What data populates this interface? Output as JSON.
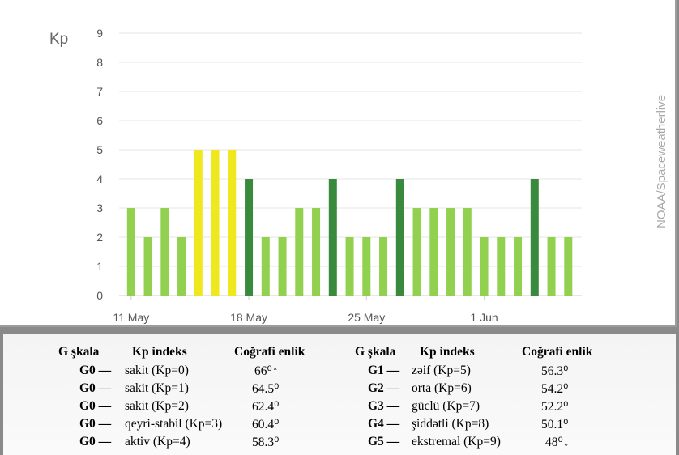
{
  "chart_data": {
    "type": "bar",
    "ylabel": "Kp",
    "ylim": [
      0,
      9
    ],
    "yticks": [
      0,
      1,
      2,
      3,
      4,
      5,
      6,
      7,
      8,
      9
    ],
    "x_tick_labels": [
      "11 May",
      "18 May",
      "25 May",
      "1 Jun"
    ],
    "categories": [
      "11 May",
      "12 May",
      "13 May",
      "14 May",
      "15 May",
      "16 May",
      "17 May",
      "18 May",
      "19 May",
      "20 May",
      "21 May",
      "22 May",
      "23 May",
      "24 May",
      "25 May",
      "26 May",
      "27 May",
      "28 May",
      "29 May",
      "30 May",
      "31 May",
      "1 Jun",
      "2 Jun",
      "3 Jun",
      "4 Jun",
      "5 Jun",
      "6 Jun",
      "7 Jun"
    ],
    "values": [
      3,
      2,
      3,
      2,
      5,
      5,
      5,
      4,
      2,
      2,
      3,
      3,
      4,
      2,
      2,
      2,
      4,
      3,
      3,
      3,
      3,
      2,
      2,
      2,
      4,
      2,
      2,
      0
    ],
    "grid": true,
    "colors": {
      "quiet": "#92d050",
      "active": "#3a8a3e",
      "storm": "#f0e81f"
    },
    "credit": "NOAA/Spaceweatherlive"
  },
  "table": {
    "headers": [
      "G şkala",
      "Kp indeks",
      "Coğrafi enlik"
    ],
    "left": [
      {
        "g": "G0 —",
        "kp": "sakit (Kp=0)",
        "lat": "66⁰↑"
      },
      {
        "g": "G0 —",
        "kp": "sakit (Kp=1)",
        "lat": "64.5⁰"
      },
      {
        "g": "G0 —",
        "kp": "sakit (Kp=2)",
        "lat": "62.4⁰"
      },
      {
        "g": "G0 —",
        "kp": "qeyri-stabil (Kp=3)",
        "lat": "60.4⁰"
      },
      {
        "g": "G0 —",
        "kp": "aktiv (Kp=4)",
        "lat": "58.3⁰"
      }
    ],
    "right": [
      {
        "g": "G1 —",
        "kp": "zəif (Kp=5)",
        "lat": "56.3⁰"
      },
      {
        "g": "G2 —",
        "kp": "orta (Kp=6)",
        "lat": "54.2⁰"
      },
      {
        "g": "G3 —",
        "kp": "güclü (Kp=7)",
        "lat": "52.2⁰"
      },
      {
        "g": "G4 —",
        "kp": "şiddətli (Kp=8)",
        "lat": "50.1⁰"
      },
      {
        "g": "G5 —",
        "kp": "ekstremal (Kp=9)",
        "lat": "48⁰↓"
      }
    ]
  }
}
